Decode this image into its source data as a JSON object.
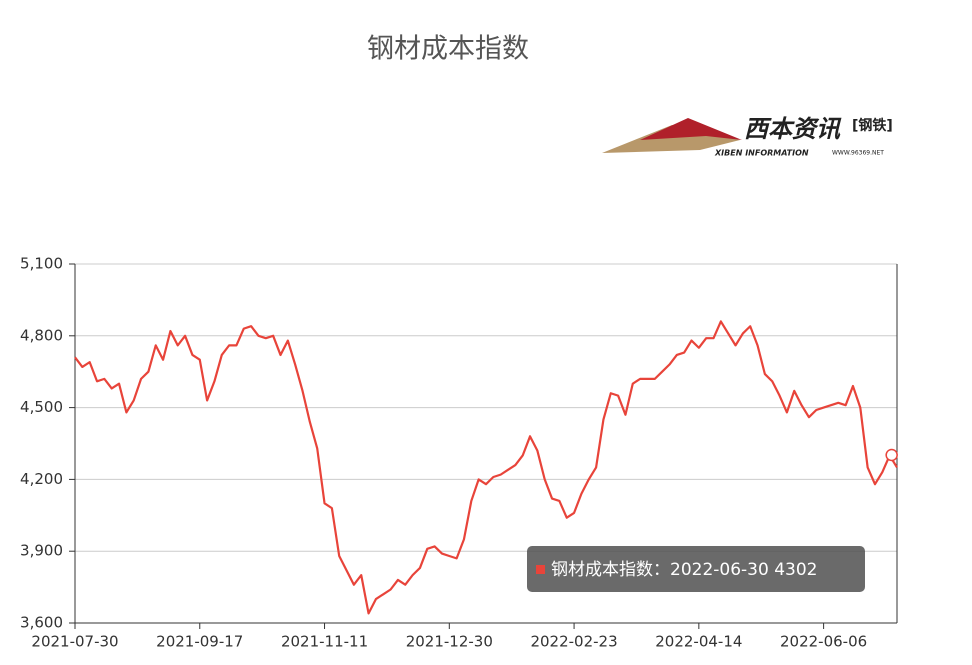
{
  "chart_data": {
    "type": "line",
    "title": "钢材成本指数",
    "logo": {
      "brand": "西本资讯",
      "tag": "[钢铁]",
      "sub": "XIBEN INFORMATION",
      "site": "WWW.96369.NET"
    },
    "categories": [
      "2021-07-30",
      null,
      null,
      null,
      null,
      null,
      null,
      null,
      null,
      null,
      null,
      null,
      null,
      null,
      null,
      null,
      null,
      "2021-09-17",
      null,
      null,
      null,
      null,
      null,
      null,
      null,
      null,
      null,
      null,
      null,
      null,
      null,
      null,
      null,
      null,
      "2021-11-11",
      null,
      null,
      null,
      null,
      null,
      null,
      null,
      null,
      null,
      null,
      null,
      null,
      null,
      null,
      null,
      null,
      "2021-12-30",
      null,
      null,
      null,
      null,
      null,
      null,
      null,
      null,
      null,
      null,
      null,
      null,
      null,
      null,
      null,
      null,
      "2022-02-23",
      null,
      null,
      null,
      null,
      null,
      null,
      null,
      null,
      null,
      null,
      null,
      null,
      null,
      null,
      null,
      null,
      "2022-04-14",
      null,
      null,
      null,
      null,
      null,
      null,
      null,
      null,
      null,
      null,
      null,
      null,
      null,
      null,
      null,
      null,
      "2022-06-06",
      null,
      null,
      null,
      null,
      null,
      null,
      null,
      null,
      null,
      null
    ],
    "values": [
      4710,
      4670,
      4690,
      4610,
      4620,
      4580,
      4600,
      4480,
      4530,
      4620,
      4650,
      4760,
      4700,
      4820,
      4760,
      4800,
      4720,
      4700,
      4530,
      4610,
      4720,
      4760,
      4760,
      4830,
      4840,
      4800,
      4790,
      4800,
      4720,
      4780,
      4680,
      4570,
      4440,
      4330,
      4100,
      4080,
      3880,
      3820,
      3760,
      3800,
      3640,
      3700,
      3720,
      3740,
      3780,
      3760,
      3800,
      3830,
      3910,
      3920,
      3890,
      3880,
      3870,
      3950,
      4110,
      4200,
      4180,
      4210,
      4220,
      4240,
      4260,
      4300,
      4380,
      4320,
      4200,
      4120,
      4110,
      4040,
      4060,
      4140,
      4200,
      4250,
      4450,
      4560,
      4550,
      4470,
      4600,
      4620,
      4620,
      4620,
      4650,
      4680,
      4720,
      4730,
      4780,
      4750,
      4790,
      4790,
      4860,
      4810,
      4760,
      4810,
      4840,
      4760,
      4640,
      4610,
      4550,
      4480,
      4570,
      4510,
      4460,
      4490,
      4500,
      4510,
      4520,
      4510,
      4590,
      4500,
      4250,
      4180,
      4230,
      4300,
      4250
    ],
    "color": "#e8443a",
    "ylim": [
      3600,
      5100
    ],
    "yticks": [
      {
        "value": 3600,
        "label": "3,600"
      },
      {
        "value": 3900,
        "label": "3,900"
      },
      {
        "value": 4200,
        "label": "4,200"
      },
      {
        "value": 4500,
        "label": "4,500"
      },
      {
        "value": 4800,
        "label": "4,800"
      },
      {
        "value": 5100,
        "label": "5,100"
      }
    ],
    "grid": true,
    "tooltip": {
      "text": "钢材成本指数：2022-06-30 4302",
      "value": 4302
    }
  }
}
